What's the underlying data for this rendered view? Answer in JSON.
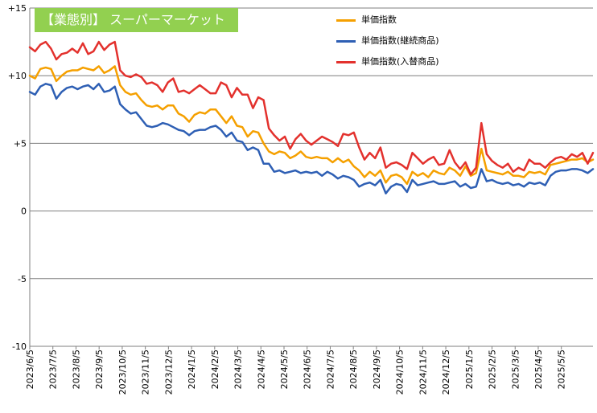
{
  "chart_data": {
    "type": "line",
    "title": "【業態別】 スーパーマーケット",
    "ylim": [
      -10,
      15
    ],
    "yticks": [
      15,
      10,
      5,
      0,
      -5,
      -10
    ],
    "ytick_labels": [
      "+15",
      "+10",
      "+5",
      "0",
      "-5",
      "-10"
    ],
    "xtick_labels": [
      "2023/6/5",
      "2023/7/5",
      "2023/8/5",
      "2023/9/5",
      "2023/10/5",
      "2023/11/5",
      "2023/12/5",
      "2024/1/5",
      "2024/2/5",
      "2024/3/5",
      "2024/4/5",
      "2024/5/5",
      "2024/6/5",
      "2024/7/5",
      "2024/8/5",
      "2024/9/5",
      "2024/10/5",
      "2024/11/5",
      "2024/12/5",
      "2025/1/5",
      "2025/2/5",
      "2025/3/5",
      "2025/4/5",
      "2025/5/5"
    ],
    "grid": true,
    "legend_position": "top-right",
    "series": [
      {
        "name": "単価指数",
        "color": "#f5a000",
        "values": [
          10.0,
          9.8,
          10.5,
          10.6,
          10.5,
          9.6,
          10.0,
          10.3,
          10.4,
          10.4,
          10.6,
          10.5,
          10.4,
          10.7,
          10.2,
          10.4,
          10.7,
          9.3,
          8.8,
          8.6,
          8.7,
          8.2,
          7.8,
          7.7,
          7.8,
          7.5,
          7.8,
          7.8,
          7.2,
          7.0,
          6.6,
          7.1,
          7.3,
          7.2,
          7.5,
          7.5,
          7.0,
          6.5,
          7.0,
          6.3,
          6.2,
          5.5,
          5.9,
          5.8,
          5.0,
          4.4,
          4.2,
          4.4,
          4.3,
          3.9,
          4.1,
          4.4,
          4.0,
          3.9,
          4.0,
          3.9,
          3.9,
          3.6,
          3.9,
          3.6,
          3.8,
          3.3,
          3.0,
          2.5,
          2.9,
          2.6,
          3.0,
          2.1,
          2.6,
          2.7,
          2.5,
          2.0,
          2.9,
          2.6,
          2.8,
          2.5,
          3.0,
          2.8,
          2.7,
          3.2,
          3.0,
          2.6,
          3.3,
          2.6,
          2.8,
          4.6,
          3.0,
          2.9,
          2.8,
          2.7,
          2.9,
          2.6,
          2.6,
          2.5,
          2.9,
          2.8,
          2.9,
          2.7,
          3.4,
          3.5,
          3.6,
          3.7,
          3.8,
          3.8,
          3.9,
          3.6,
          3.8
        ]
      },
      {
        "name": "単価指数(継続商品)",
        "color": "#2e5fb4",
        "values": [
          8.8,
          8.6,
          9.2,
          9.4,
          9.3,
          8.3,
          8.8,
          9.1,
          9.2,
          9.0,
          9.2,
          9.3,
          9.0,
          9.4,
          8.8,
          8.9,
          9.2,
          7.9,
          7.5,
          7.2,
          7.3,
          6.8,
          6.3,
          6.2,
          6.3,
          6.5,
          6.4,
          6.2,
          6.0,
          5.9,
          5.6,
          5.9,
          6.0,
          6.0,
          6.2,
          6.3,
          6.0,
          5.5,
          5.8,
          5.2,
          5.1,
          4.5,
          4.7,
          4.5,
          3.5,
          3.5,
          2.9,
          3.0,
          2.8,
          2.9,
          3.0,
          2.8,
          2.9,
          2.8,
          2.9,
          2.6,
          2.9,
          2.7,
          2.4,
          2.6,
          2.5,
          2.3,
          1.8,
          2.0,
          2.1,
          1.9,
          2.3,
          1.3,
          1.8,
          2.0,
          1.9,
          1.4,
          2.3,
          1.9,
          2.0,
          2.1,
          2.2,
          2.0,
          2.0,
          2.1,
          2.2,
          1.8,
          2.0,
          1.7,
          1.8,
          3.1,
          2.2,
          2.3,
          2.1,
          2.0,
          2.1,
          1.9,
          2.0,
          1.8,
          2.1,
          2.0,
          2.1,
          1.9,
          2.6,
          2.9,
          3.0,
          3.0,
          3.1,
          3.1,
          3.0,
          2.8,
          3.1
        ]
      },
      {
        "name": "単価指数(入替商品)",
        "color": "#e3312d",
        "values": [
          12.1,
          11.8,
          12.3,
          12.5,
          12.0,
          11.2,
          11.6,
          11.7,
          12.0,
          11.7,
          12.4,
          11.6,
          11.8,
          12.5,
          11.9,
          12.3,
          12.5,
          10.4,
          10.0,
          9.9,
          10.1,
          9.9,
          9.4,
          9.5,
          9.3,
          8.8,
          9.5,
          9.8,
          8.8,
          8.9,
          8.7,
          9.0,
          9.3,
          9.0,
          8.7,
          8.7,
          9.5,
          9.3,
          8.4,
          9.1,
          8.6,
          8.6,
          7.6,
          8.4,
          8.2,
          6.1,
          5.6,
          5.2,
          5.5,
          4.6,
          5.3,
          5.7,
          5.2,
          4.9,
          5.2,
          5.5,
          5.3,
          5.1,
          4.8,
          5.7,
          5.6,
          5.8,
          4.7,
          3.8,
          4.3,
          3.9,
          4.7,
          3.2,
          3.5,
          3.6,
          3.4,
          3.1,
          4.3,
          3.9,
          3.5,
          3.8,
          4.0,
          3.4,
          3.5,
          4.5,
          3.6,
          3.1,
          3.6,
          2.7,
          3.2,
          6.5,
          4.2,
          3.7,
          3.4,
          3.2,
          3.5,
          2.9,
          3.2,
          3.0,
          3.8,
          3.5,
          3.5,
          3.2,
          3.6,
          3.9,
          4.0,
          3.8,
          4.2,
          4.0,
          4.3,
          3.5,
          4.3
        ]
      }
    ]
  }
}
